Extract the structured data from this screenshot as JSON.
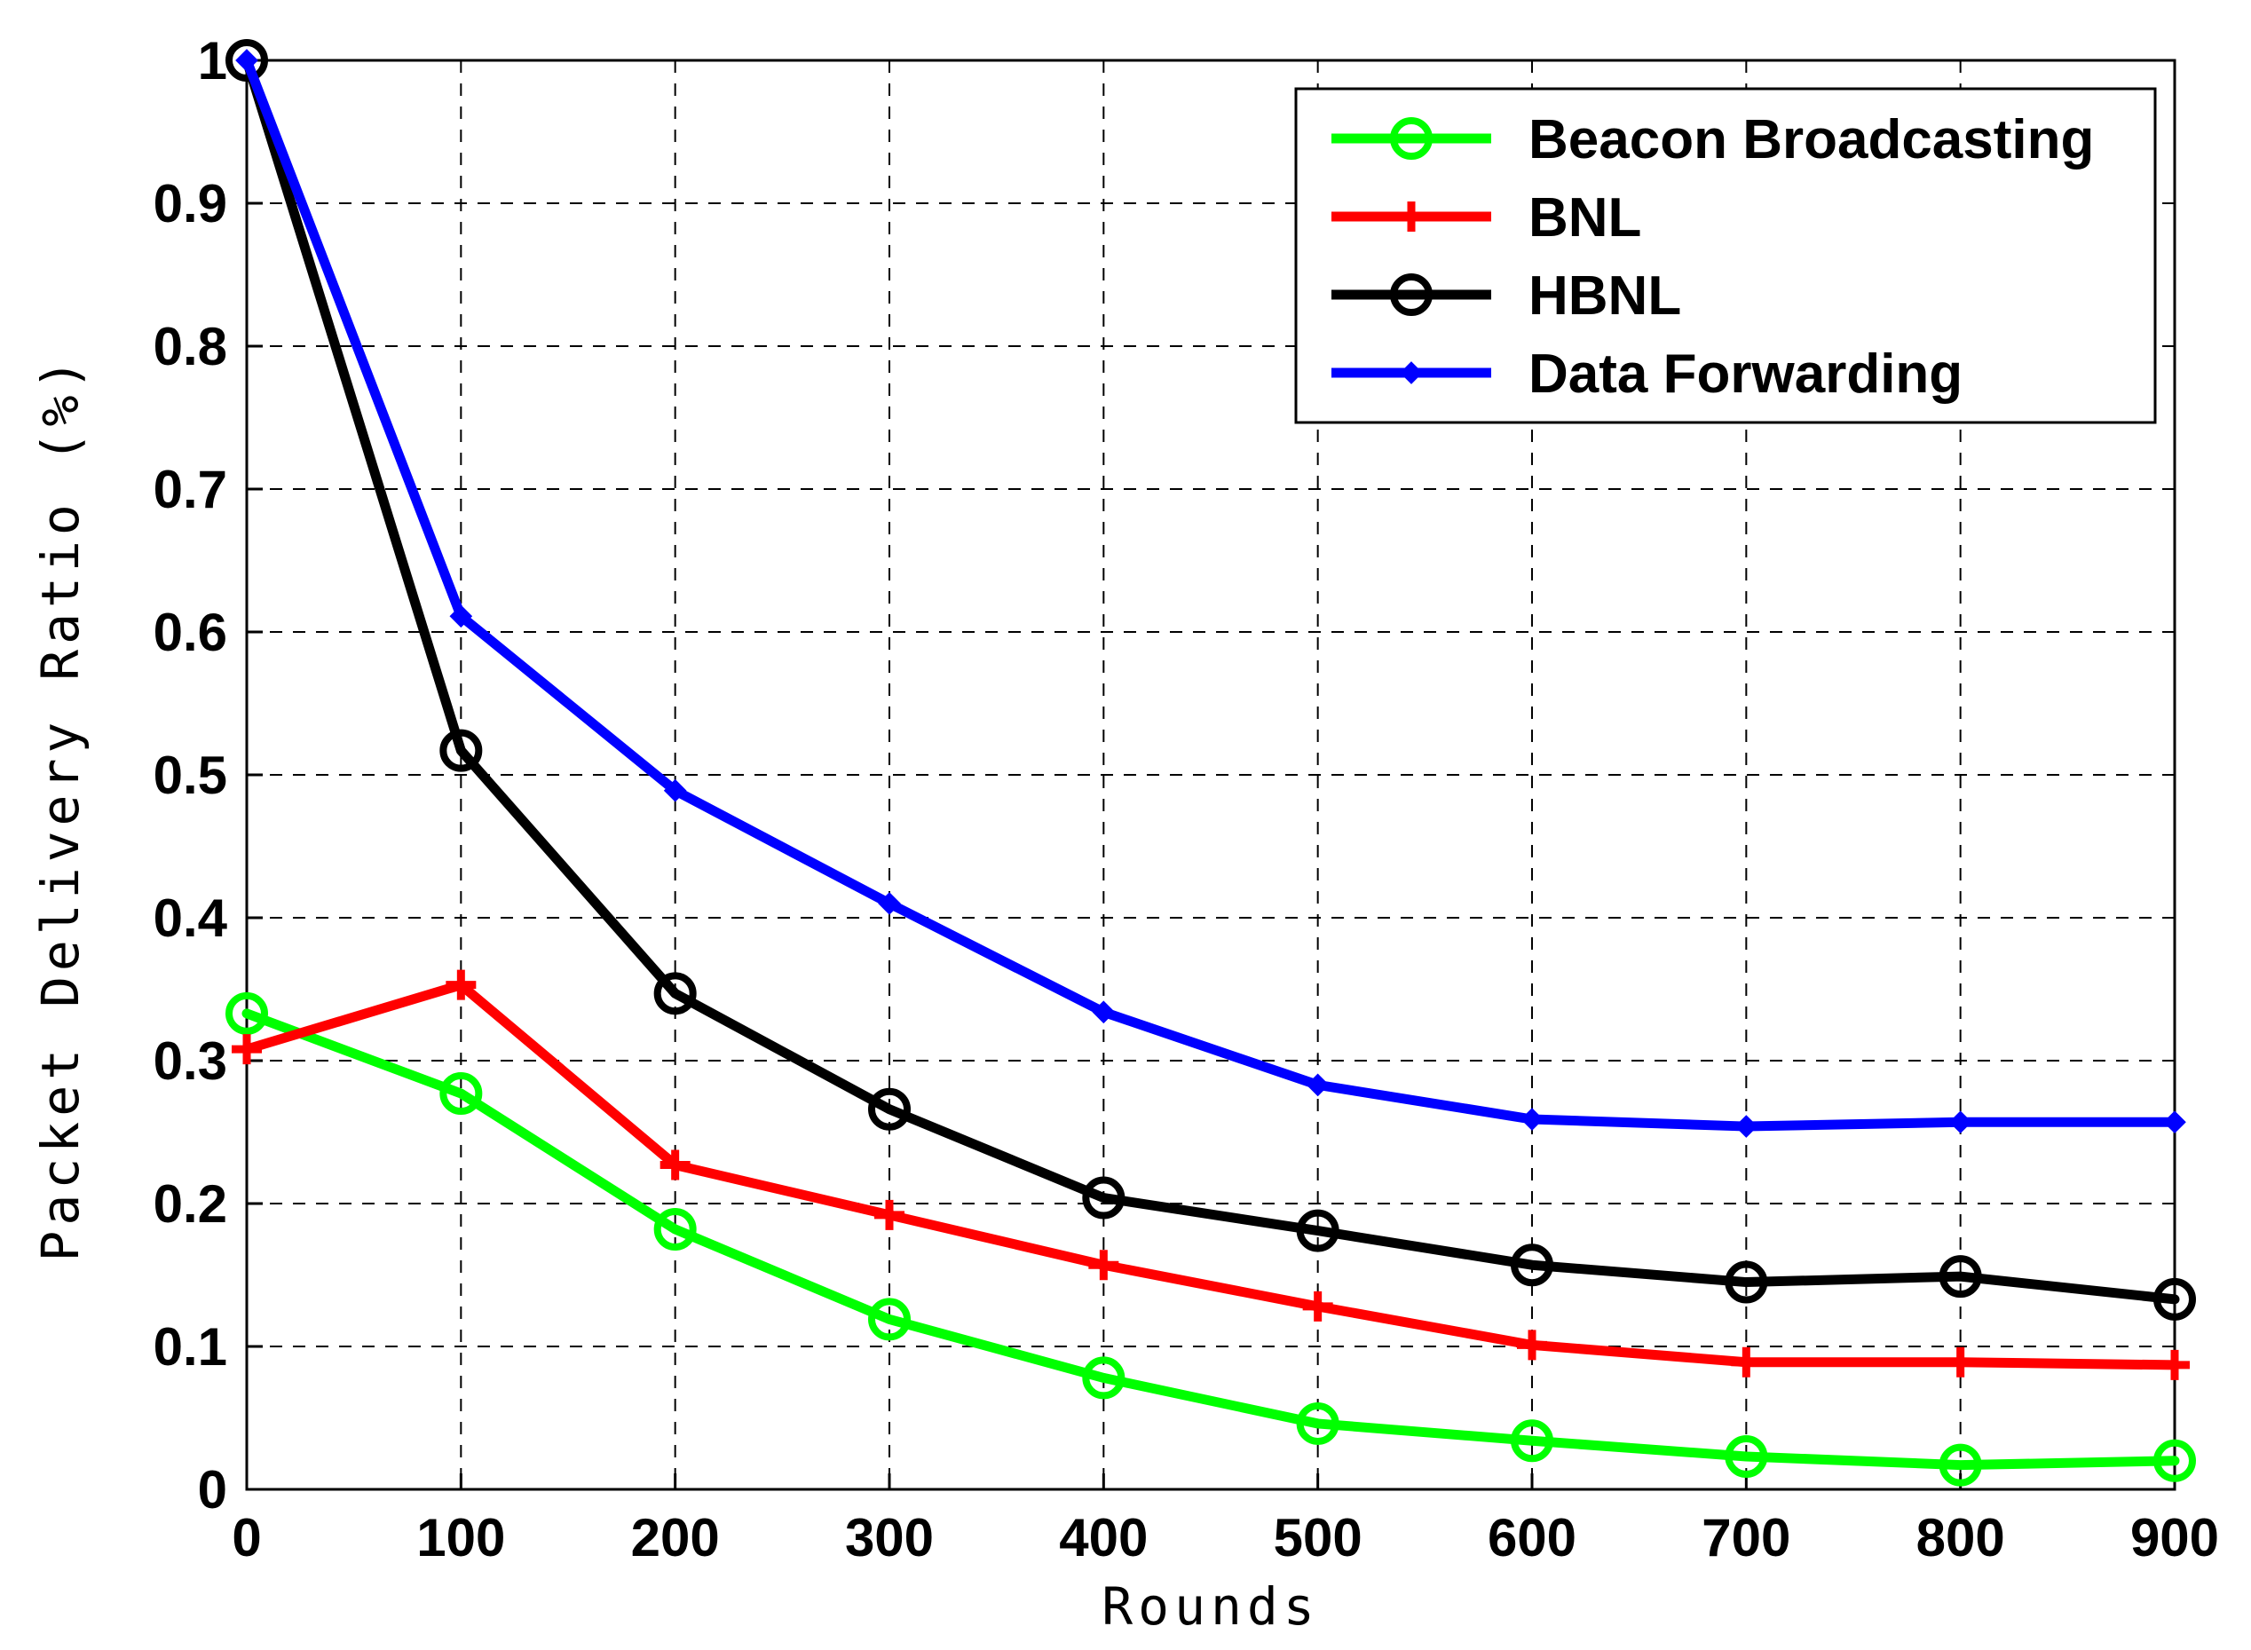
{
  "chart_data": {
    "type": "line",
    "title": "",
    "xlabel": "Rounds",
    "ylabel": "Packet Delivery Ratio (%)",
    "xlim": [
      0,
      900
    ],
    "ylim": [
      0,
      1
    ],
    "x": [
      0,
      100,
      200,
      300,
      400,
      500,
      600,
      700,
      800,
      900
    ],
    "x_ticks": [
      "0",
      "100",
      "200",
      "300",
      "400",
      "500",
      "600",
      "700",
      "800",
      "900"
    ],
    "y_ticks": [
      "0",
      "0.1",
      "0.2",
      "0.3",
      "0.4",
      "0.5",
      "0.6",
      "0.7",
      "0.8",
      "0.9",
      "1"
    ],
    "grid": true,
    "legend_position": "top-right",
    "series": [
      {
        "name": "Beacon Broadcasting",
        "color": "#00ff00",
        "marker": "circle",
        "values": [
          0.333,
          0.277,
          0.182,
          0.119,
          0.078,
          0.046,
          0.034,
          0.023,
          0.017,
          0.02
        ]
      },
      {
        "name": "BNL",
        "color": "#ff0000",
        "marker": "plus",
        "values": [
          0.308,
          0.353,
          0.227,
          0.192,
          0.157,
          0.128,
          0.101,
          0.089,
          0.089,
          0.087
        ]
      },
      {
        "name": "HBNL",
        "color": "#000000",
        "marker": "circle",
        "values": [
          1.0,
          0.517,
          0.347,
          0.266,
          0.204,
          0.181,
          0.157,
          0.145,
          0.149,
          0.133
        ]
      },
      {
        "name": "Data Forwarding",
        "color": "#0000ff",
        "marker": "diamond",
        "values": [
          1.0,
          0.611,
          0.489,
          0.41,
          0.334,
          0.283,
          0.259,
          0.254,
          0.257,
          0.257
        ]
      }
    ]
  }
}
